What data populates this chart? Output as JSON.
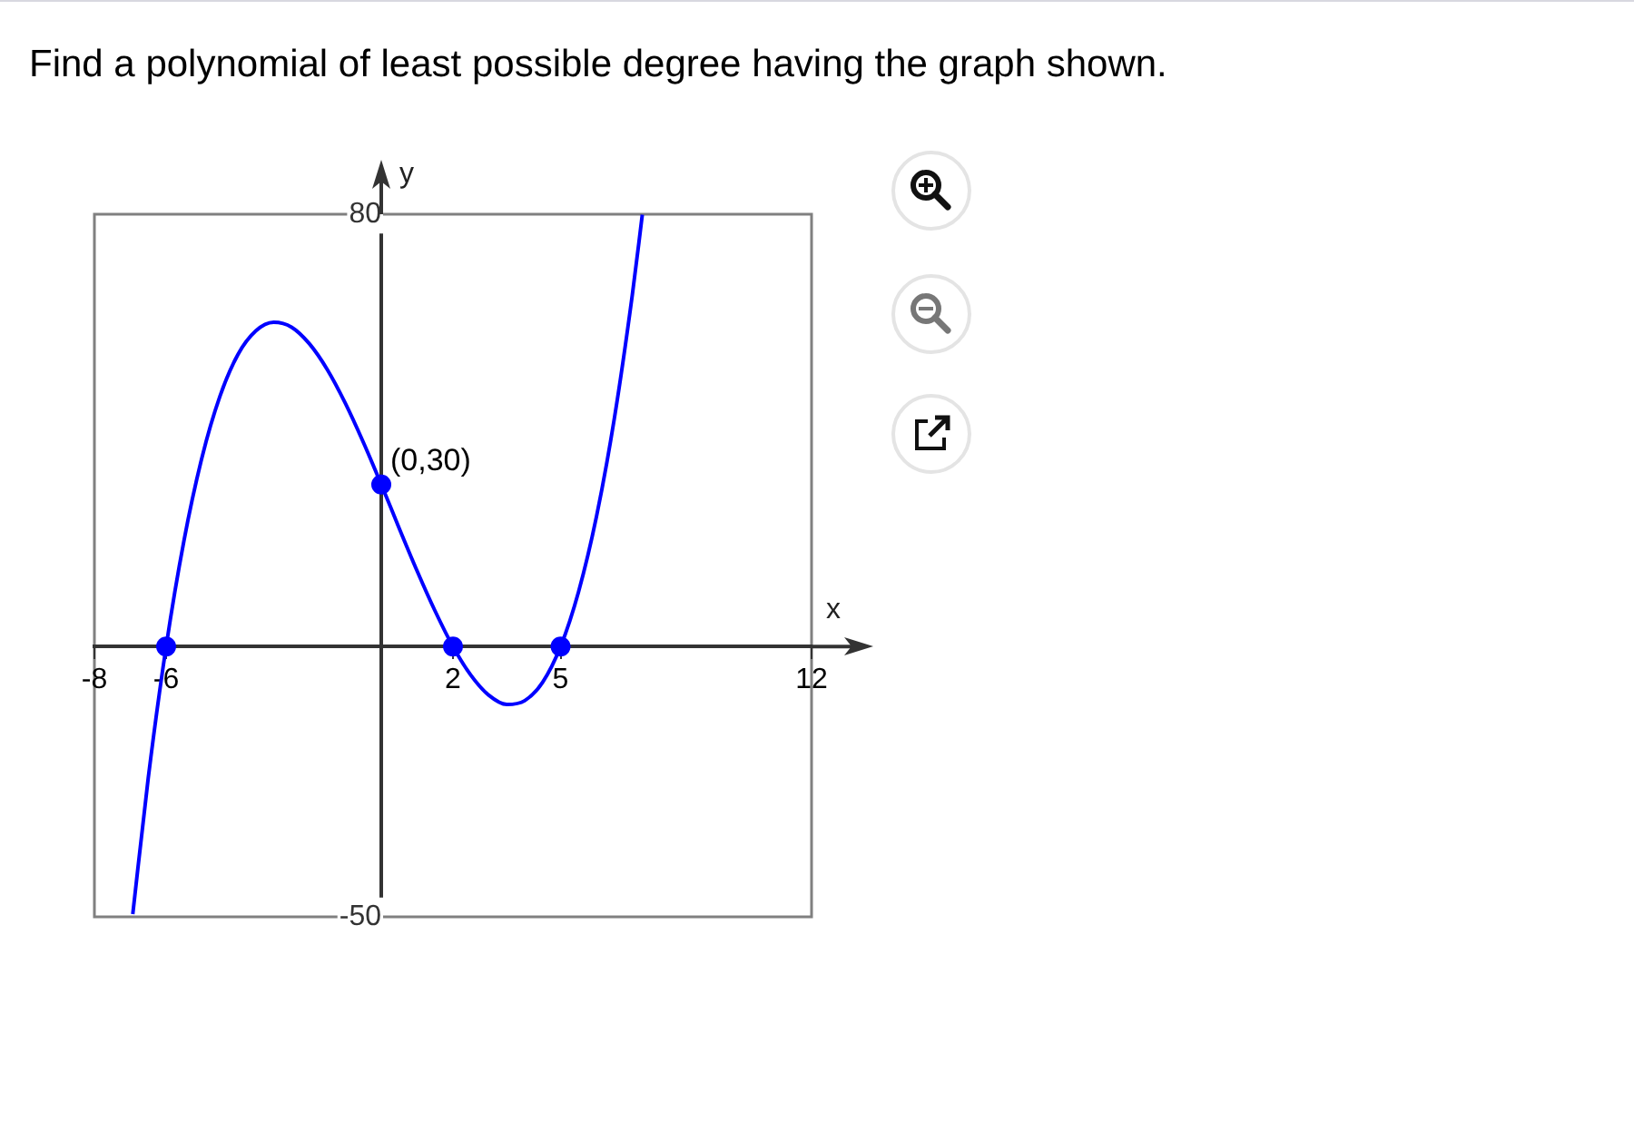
{
  "chart_data": {
    "type": "line",
    "title": "Find a polynomial of least possible degree having the graph shown.",
    "xlabel": "x",
    "ylabel": "y",
    "xlim": [
      -8,
      12
    ],
    "ylim": [
      -50,
      80
    ],
    "xticks": [
      -8,
      -6,
      2,
      5,
      12
    ],
    "yticks": [
      -50,
      80
    ],
    "grid": false,
    "legend": false,
    "annotations": [
      {
        "text": "(0,30)",
        "x": 0,
        "y": 30
      }
    ],
    "series": [
      {
        "color": "#0000ff",
        "marker": "none",
        "x": [
          -6.93,
          -6.5,
          -6,
          -5.5,
          -5,
          -4.5,
          -4,
          -3.5,
          -3,
          -2.5,
          -2,
          -1.5,
          -1,
          -0.5,
          0,
          0.5,
          1,
          1.5,
          2,
          2.5,
          3,
          3.5,
          4,
          4.5,
          5,
          5.5,
          6,
          6.5,
          7,
          7.28
        ],
        "values": [
          -49.5,
          -24.4,
          0,
          19.7,
          35,
          46.3,
          54,
          58.4,
          60,
          59.1,
          56,
          51.2,
          45,
          37.8,
          30,
          21.9,
          14,
          6.6,
          0,
          -5.3,
          -9,
          -10.7,
          -10,
          -6.6,
          0,
          10.1,
          24,
          42.2,
          65,
          79.9
        ]
      },
      {
        "type": "scatter",
        "color": "#0000ff",
        "marker": "circle",
        "x": [
          -6,
          0,
          2,
          5
        ],
        "values": [
          0,
          30,
          0,
          0
        ]
      }
    ]
  }
}
